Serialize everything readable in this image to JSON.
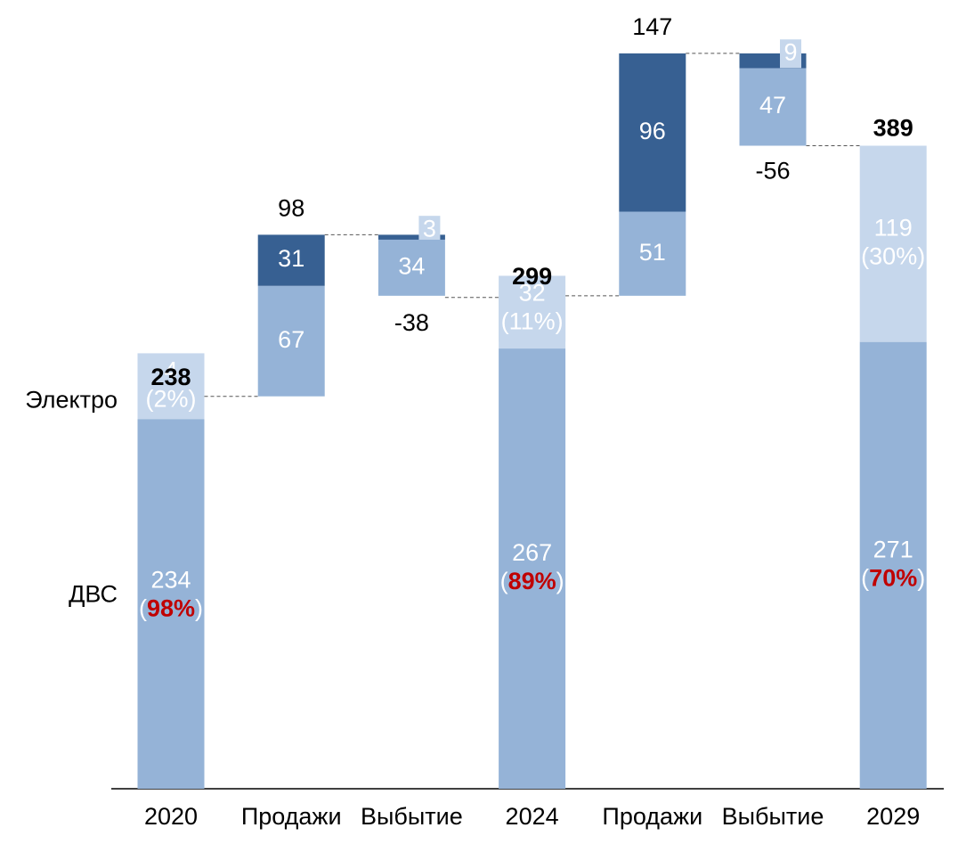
{
  "chart_data": {
    "type": "waterfall",
    "categories": [
      "2020",
      "Продажи",
      "Выбытие",
      "2024",
      "Продажи",
      "Выбытие",
      "2029"
    ],
    "measure": [
      "total",
      "increase",
      "decrease",
      "total",
      "increase",
      "decrease",
      "total"
    ],
    "totals": [
      238,
      98,
      -38,
      299,
      147,
      -56,
      389
    ],
    "series": [
      {
        "name": "ДВС",
        "color": "#95b3d7",
        "values": [
          234,
          67,
          34,
          267,
          51,
          47,
          271
        ],
        "shares": [
          98,
          null,
          null,
          89,
          null,
          null,
          70
        ],
        "share_labels": [
          "(98%)",
          null,
          null,
          "(89%)",
          null,
          null,
          "(70%)"
        ],
        "share_color": "#c00000"
      },
      {
        "name": "Электро",
        "color": "#c6d7ec",
        "increase_color": "#376092",
        "values": [
          4,
          31,
          3,
          32,
          96,
          9,
          119
        ],
        "shares": [
          2,
          null,
          null,
          11,
          null,
          null,
          30
        ],
        "share_labels": [
          "(2%)",
          null,
          null,
          "(11%)",
          null,
          null,
          "(30%)"
        ]
      }
    ]
  }
}
